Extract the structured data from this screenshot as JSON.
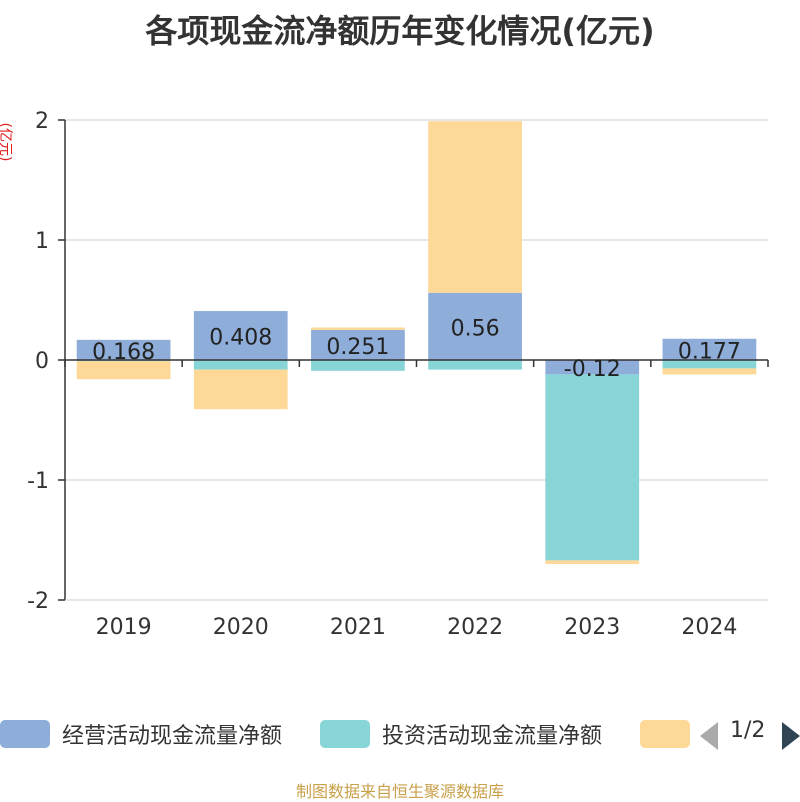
{
  "title": "各项现金流净额历年变化情况(亿元)",
  "unit_label": "(亿元)",
  "source_note": "制图数据来自恒生聚源数据库",
  "legend": {
    "items": [
      {
        "label": "经营活动现金流量净额",
        "color": "#8eadd9"
      },
      {
        "label": "投资活动现金流量净额",
        "color": "#88d5d8"
      },
      {
        "label": "",
        "color": "#fed897"
      }
    ],
    "page_text": "1/2"
  },
  "chart_data": {
    "type": "bar",
    "stacked": true,
    "categories": [
      "2019",
      "2020",
      "2021",
      "2022",
      "2023",
      "2024"
    ],
    "series": [
      {
        "name": "经营活动现金流量净额",
        "color": "#8eadd9",
        "values": [
          0.168,
          0.408,
          0.251,
          0.56,
          -0.12,
          0.177
        ],
        "labels": [
          "0.168",
          "0.408",
          "0.251",
          "0.56",
          "-0.12",
          "0.177"
        ]
      },
      {
        "name": "投资活动现金流量净额",
        "color": "#88d5d8",
        "values": [
          -0.01,
          -0.08,
          -0.09,
          -0.08,
          -1.55,
          -0.07
        ]
      },
      {
        "name": "",
        "color": "#fed897",
        "values": [
          -0.15,
          -0.33,
          0.02,
          1.43,
          -0.03,
          -0.05
        ]
      }
    ],
    "ylim": [
      -2,
      2
    ],
    "yticks": [
      "-2",
      "-1",
      "0",
      "1",
      "2"
    ],
    "grid": true
  }
}
